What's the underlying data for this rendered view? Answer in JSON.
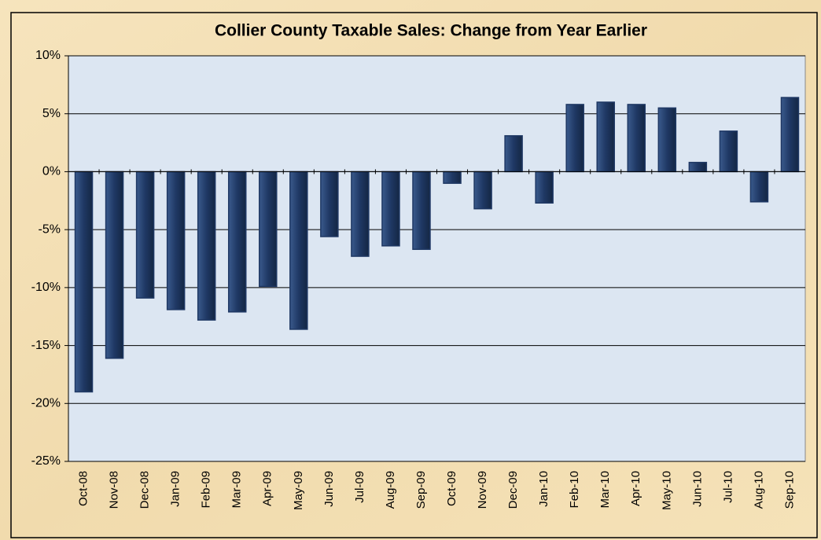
{
  "chart_data": {
    "type": "bar",
    "title": "Collier County Taxable Sales: Change from Year Earlier",
    "categories": [
      "Oct-08",
      "Nov-08",
      "Dec-08",
      "Jan-09",
      "Feb-09",
      "Mar-09",
      "Apr-09",
      "May-09",
      "Jun-09",
      "Jul-09",
      "Aug-09",
      "Sep-09",
      "Oct-09",
      "Nov-09",
      "Dec-09",
      "Jan-10",
      "Feb-10",
      "Mar-10",
      "Apr-10",
      "May-10",
      "Jun-10",
      "Jul-10",
      "Aug-10",
      "Sep-10"
    ],
    "values": [
      -19.0,
      -16.1,
      -10.9,
      -11.9,
      -12.8,
      -12.1,
      -9.9,
      -13.6,
      -5.6,
      -7.3,
      -6.4,
      -6.7,
      -1.0,
      -3.2,
      3.1,
      -2.7,
      5.8,
      6.0,
      5.8,
      5.5,
      0.8,
      3.5,
      -2.6,
      6.4
    ],
    "color": "#1f3864",
    "ylim": [
      -25,
      10
    ],
    "yticks": [
      {
        "value": -25,
        "label": "-25%"
      },
      {
        "value": -20,
        "label": "-20%"
      },
      {
        "value": -15,
        "label": "-15%"
      },
      {
        "value": -10,
        "label": "-10%"
      },
      {
        "value": -5,
        "label": "-5%"
      },
      {
        "value": 0,
        "label": "0%"
      },
      {
        "value": 5,
        "label": "5%"
      },
      {
        "value": 10,
        "label": "10%"
      }
    ],
    "grid": true
  }
}
